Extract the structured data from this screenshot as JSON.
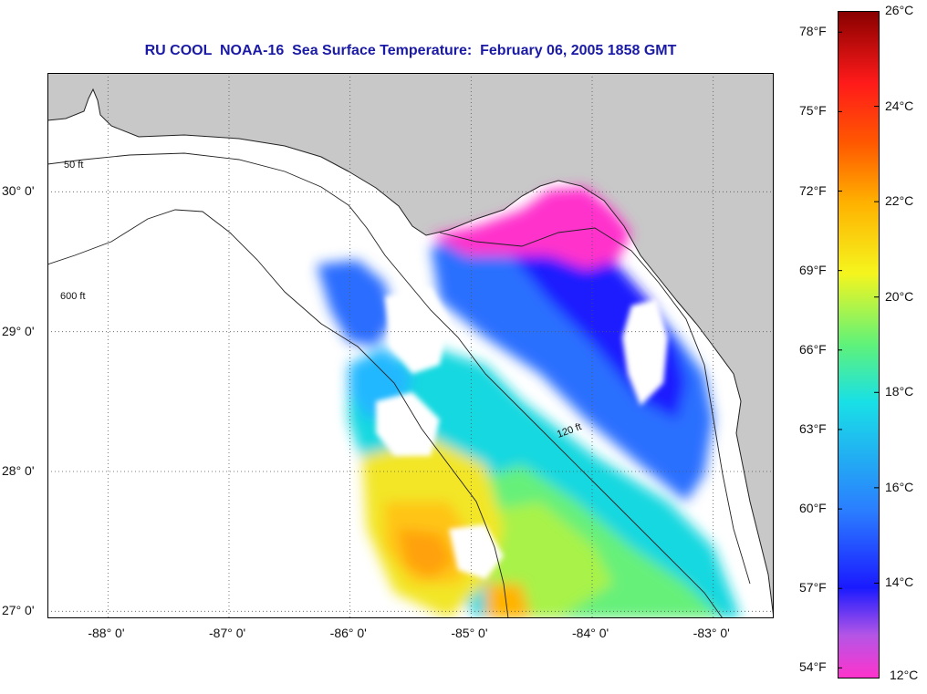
{
  "title": "RU COOL  NOAA-16  Sea Surface Temperature:  February 06, 2005 1858 GMT",
  "map": {
    "lon_range": [
      -88.5,
      -82.5
    ],
    "lat_range": [
      26.95,
      30.85
    ],
    "lat_ticks": [
      {
        "value": 30,
        "label": "30° 0'"
      },
      {
        "value": 29,
        "label": "29° 0'"
      },
      {
        "value": 28,
        "label": "28° 0'"
      },
      {
        "value": 27,
        "label": "27° 0'"
      }
    ],
    "lon_ticks": [
      {
        "value": -88,
        "label": "-88° 0'"
      },
      {
        "value": -87,
        "label": "-87° 0'"
      },
      {
        "value": -86,
        "label": "-86° 0'"
      },
      {
        "value": -85,
        "label": "-85° 0'"
      },
      {
        "value": -84,
        "label": "-84° 0'"
      },
      {
        "value": -83,
        "label": "-83° 0'"
      }
    ],
    "contour_labels": [
      "50 ft",
      "120 ft",
      "600 ft"
    ],
    "colors": {
      "land": "#c8c8c8",
      "no_data": "#ffffff",
      "grid": "#555555"
    }
  },
  "colorbar": {
    "celsius_range": [
      12,
      26
    ],
    "fahrenheit_ticks": [
      {
        "value": 78,
        "label": "78°F"
      },
      {
        "value": 75,
        "label": "75°F"
      },
      {
        "value": 72,
        "label": "72°F"
      },
      {
        "value": 69,
        "label": "69°F"
      },
      {
        "value": 66,
        "label": "66°F"
      },
      {
        "value": 63,
        "label": "63°F"
      },
      {
        "value": 60,
        "label": "60°F"
      },
      {
        "value": 57,
        "label": "57°F"
      },
      {
        "value": 54,
        "label": "54°F"
      }
    ],
    "celsius_ticks": [
      {
        "value": 26,
        "label": "26°C"
      },
      {
        "value": 24,
        "label": "24°C"
      },
      {
        "value": 22,
        "label": "22°C"
      },
      {
        "value": 20,
        "label": "20°C"
      },
      {
        "value": 18,
        "label": "18°C"
      },
      {
        "value": 16,
        "label": "16°C"
      },
      {
        "value": 14,
        "label": "14°C"
      },
      {
        "value": 12,
        "label": "12°C"
      }
    ],
    "gradient_stops": [
      {
        "celsius": 12,
        "color": "#ff33cc"
      },
      {
        "celsius": 12.9,
        "color": "#b455e6"
      },
      {
        "celsius": 13.9,
        "color": "#1a1aff"
      },
      {
        "celsius": 15.5,
        "color": "#2b7dff"
      },
      {
        "celsius": 17.8,
        "color": "#19e0e6"
      },
      {
        "celsius": 19.0,
        "color": "#5ff27a"
      },
      {
        "celsius": 20.5,
        "color": "#f5f51e"
      },
      {
        "celsius": 22.0,
        "color": "#ffb000"
      },
      {
        "celsius": 23.2,
        "color": "#ff5a00"
      },
      {
        "celsius": 24.5,
        "color": "#ff1a1a"
      },
      {
        "celsius": 26,
        "color": "#880000"
      }
    ]
  }
}
